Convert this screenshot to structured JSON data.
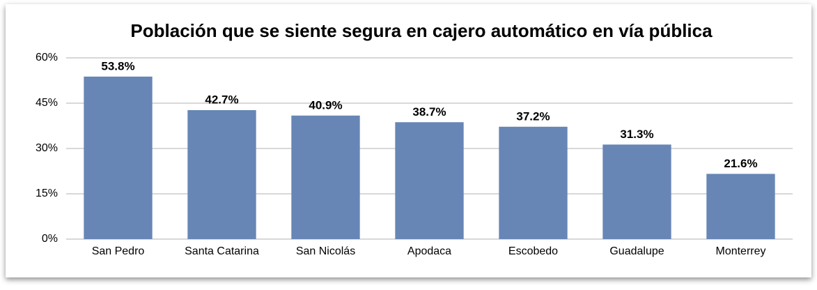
{
  "chart_data": {
    "type": "bar",
    "title": "Población que se siente segura en cajero automático en vía pública",
    "categories": [
      "San Pedro",
      "Santa Catarina",
      "San Nicolás",
      "Apodaca",
      "Escobedo",
      "Guadalupe",
      "Monterrey"
    ],
    "values": [
      53.8,
      42.7,
      40.9,
      38.7,
      37.2,
      31.3,
      21.6
    ],
    "value_labels": [
      "53.8%",
      "42.7%",
      "40.9%",
      "38.7%",
      "37.2%",
      "31.3%",
      "21.6%"
    ],
    "color": "#6786b6",
    "ylim": [
      0,
      60
    ],
    "yticks": [
      {
        "value": 0,
        "label": "0%"
      },
      {
        "value": 15,
        "label": "15%"
      },
      {
        "value": 30,
        "label": "30%"
      },
      {
        "value": 45,
        "label": "45%"
      },
      {
        "value": 60,
        "label": "60%"
      }
    ],
    "grid": true
  }
}
